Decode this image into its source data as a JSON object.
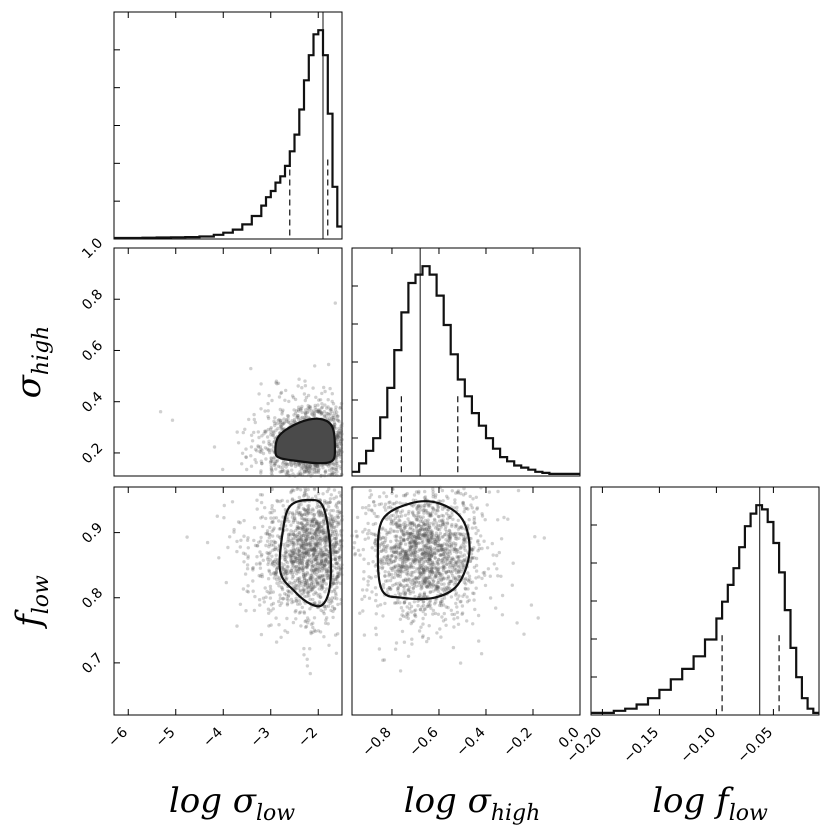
{
  "chart_data": {
    "type": "scatter",
    "figure": "corner plot",
    "parameters": [
      {
        "id": "log_sigma_low",
        "label_base": "log σ",
        "label_sub": "low",
        "range": [
          -6.3,
          -1.5
        ],
        "ticks": [
          {
            "v": -6,
            "t": "−6"
          },
          {
            "v": -5,
            "t": "−5"
          },
          {
            "v": -4,
            "t": "−4"
          },
          {
            "v": -3,
            "t": "−3"
          },
          {
            "v": -2,
            "t": "−2"
          }
        ],
        "median": -1.9,
        "quantiles": [
          -2.6,
          -1.8
        ]
      },
      {
        "id": "log_sigma_high",
        "label_base": "log σ",
        "label_sub": "high",
        "range": [
          -0.97,
          0.0
        ],
        "ticks": [
          {
            "v": -0.8,
            "t": "−0.8"
          },
          {
            "v": -0.6,
            "t": "−0.6"
          },
          {
            "v": -0.4,
            "t": "−0.4"
          },
          {
            "v": -0.2,
            "t": "−0.2"
          },
          {
            "v": 0.0,
            "t": "0.0"
          }
        ],
        "median": -0.68,
        "quantiles": [
          -0.76,
          -0.52
        ]
      },
      {
        "id": "log_f_low",
        "label_base": "log f",
        "label_sub": "low",
        "range": [
          -0.21,
          -0.01
        ],
        "ticks": [
          {
            "v": -0.2,
            "t": "−0.20"
          },
          {
            "v": -0.15,
            "t": "−0.15"
          },
          {
            "v": -0.1,
            "t": "−0.10"
          },
          {
            "v": -0.05,
            "t": "−0.05"
          }
        ],
        "median": -0.062,
        "quantiles": [
          -0.095,
          -0.045
        ]
      }
    ],
    "y_axes": [
      {
        "panel_row": 1,
        "label_base": "σ",
        "label_sub": "high",
        "range": [
          0.11,
          1.0
        ],
        "ticks": [
          {
            "v": 0.2,
            "t": "0.2"
          },
          {
            "v": 0.4,
            "t": "0.4"
          },
          {
            "v": 0.6,
            "t": "0.6"
          },
          {
            "v": 0.8,
            "t": "0.8"
          },
          {
            "v": 1.0,
            "t": "1.0"
          }
        ]
      },
      {
        "panel_row": 2,
        "label_base": "f",
        "label_sub": "low",
        "range": [
          0.62,
          0.97
        ],
        "ticks": [
          {
            "v": 0.7,
            "t": "0.7"
          },
          {
            "v": 0.8,
            "t": "0.8"
          },
          {
            "v": 0.9,
            "t": "0.9"
          }
        ]
      }
    ],
    "histograms": [
      {
        "param": "log_sigma_low",
        "x": [
          -6.3,
          -6.0,
          -5.7,
          -5.4,
          -5.1,
          -4.8,
          -4.5,
          -4.2,
          -4.0,
          -3.8,
          -3.6,
          -3.4,
          -3.2,
          -3.1,
          -3.0,
          -2.9,
          -2.8,
          -2.7,
          -2.6,
          -2.5,
          -2.4,
          -2.3,
          -2.2,
          -2.1,
          -2.0,
          -1.9,
          -1.8,
          -1.7,
          -1.6,
          -1.5
        ],
        "y": [
          0.005,
          0.005,
          0.006,
          0.007,
          0.008,
          0.009,
          0.012,
          0.02,
          0.03,
          0.045,
          0.07,
          0.11,
          0.16,
          0.2,
          0.23,
          0.27,
          0.3,
          0.35,
          0.42,
          0.5,
          0.62,
          0.76,
          0.88,
          0.98,
          1.0,
          0.88,
          0.6,
          0.25,
          0.06,
          0.0
        ]
      },
      {
        "param": "log_sigma_high",
        "x": [
          -0.97,
          -0.94,
          -0.91,
          -0.88,
          -0.85,
          -0.82,
          -0.79,
          -0.76,
          -0.73,
          -0.7,
          -0.67,
          -0.64,
          -0.61,
          -0.58,
          -0.55,
          -0.52,
          -0.49,
          -0.46,
          -0.43,
          -0.4,
          -0.37,
          -0.34,
          -0.31,
          -0.28,
          -0.25,
          -0.22,
          -0.19,
          -0.16,
          -0.13,
          -0.1,
          0.0
        ],
        "y": [
          0.02,
          0.06,
          0.12,
          0.18,
          0.28,
          0.42,
          0.6,
          0.78,
          0.92,
          0.96,
          1.0,
          0.96,
          0.86,
          0.72,
          0.58,
          0.46,
          0.38,
          0.3,
          0.24,
          0.18,
          0.13,
          0.09,
          0.07,
          0.05,
          0.04,
          0.03,
          0.02,
          0.015,
          0.01,
          0.01,
          0.0
        ]
      },
      {
        "param": "log_f_low",
        "x": [
          -0.21,
          -0.2,
          -0.19,
          -0.18,
          -0.17,
          -0.16,
          -0.15,
          -0.14,
          -0.13,
          -0.12,
          -0.11,
          -0.1,
          -0.095,
          -0.09,
          -0.085,
          -0.08,
          -0.075,
          -0.07,
          -0.065,
          -0.06,
          -0.055,
          -0.05,
          -0.045,
          -0.04,
          -0.035,
          -0.03,
          -0.025,
          -0.02,
          -0.015,
          -0.01
        ],
        "y": [
          0.01,
          0.01,
          0.02,
          0.03,
          0.05,
          0.08,
          0.12,
          0.17,
          0.22,
          0.28,
          0.36,
          0.46,
          0.54,
          0.62,
          0.7,
          0.8,
          0.9,
          0.96,
          1.0,
          0.98,
          0.92,
          0.82,
          0.68,
          0.5,
          0.32,
          0.18,
          0.08,
          0.03,
          0.01,
          0.0
        ]
      }
    ],
    "contours_68": [
      {
        "panel": "log_sigma_high vs log_sigma_low",
        "filled": true,
        "points": [
          [
            -2.9,
            0.2
          ],
          [
            -2.85,
            0.26
          ],
          [
            -2.6,
            0.3
          ],
          [
            -2.2,
            0.33
          ],
          [
            -1.9,
            0.33
          ],
          [
            -1.7,
            0.3
          ],
          [
            -1.65,
            0.22
          ],
          [
            -1.7,
            0.17
          ],
          [
            -2.0,
            0.16
          ],
          [
            -2.5,
            0.17
          ],
          [
            -2.8,
            0.18
          ]
        ]
      },
      {
        "panel": "log_f_low vs log_sigma_low",
        "filled": false,
        "points": [
          [
            -2.8,
            0.84
          ],
          [
            -2.75,
            0.9
          ],
          [
            -2.6,
            0.94
          ],
          [
            -2.2,
            0.95
          ],
          [
            -1.9,
            0.94
          ],
          [
            -1.75,
            0.88
          ],
          [
            -1.75,
            0.82
          ],
          [
            -1.9,
            0.79
          ],
          [
            -2.15,
            0.79
          ],
          [
            -2.5,
            0.81
          ]
        ]
      },
      {
        "panel": "log_f_low vs log_sigma_high",
        "filled": false,
        "points": [
          [
            -0.86,
            0.86
          ],
          [
            -0.84,
            0.92
          ],
          [
            -0.72,
            0.945
          ],
          [
            -0.6,
            0.945
          ],
          [
            -0.5,
            0.92
          ],
          [
            -0.47,
            0.87
          ],
          [
            -0.52,
            0.82
          ],
          [
            -0.62,
            0.8
          ],
          [
            -0.76,
            0.8
          ],
          [
            -0.84,
            0.81
          ]
        ]
      }
    ],
    "scatter_centers": [
      {
        "panel": "log_sigma_high vs log_sigma_low",
        "x": -2.05,
        "y": 0.24,
        "sx": 0.55,
        "sy": 0.08,
        "n": 1700
      },
      {
        "panel": "log_f_low vs log_sigma_low",
        "x": -2.1,
        "y": 0.87,
        "sx": 0.55,
        "sy": 0.05,
        "n": 1700
      },
      {
        "panel": "log_f_low vs log_sigma_high",
        "x": -0.66,
        "y": 0.87,
        "sx": 0.12,
        "sy": 0.05,
        "n": 1700
      }
    ]
  }
}
